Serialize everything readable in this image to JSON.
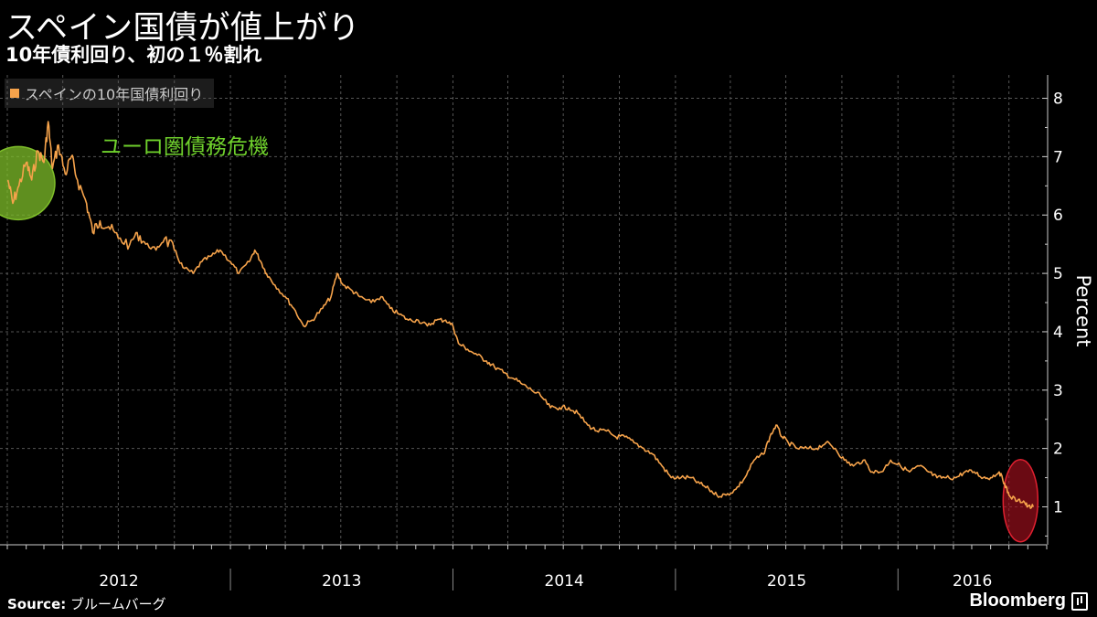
{
  "title": "スペイン国債が値上がり",
  "subtitle": "10年債利回り、初の１％割れ",
  "source_label": "Source:",
  "source_text": "ブルームバーグ",
  "brand": "Bloomberg",
  "brand_icon": "bloomberg-terminal-icon",
  "chart_data": {
    "type": "line",
    "series": [
      {
        "name": "スペインの10年国債利回り",
        "color": "#f6a34b",
        "points": [
          [
            "2012-01-02",
            6.6
          ],
          [
            "2012-01-10",
            6.2
          ],
          [
            "2012-01-20",
            6.5
          ],
          [
            "2012-02-01",
            6.9
          ],
          [
            "2012-02-10",
            6.6
          ],
          [
            "2012-02-20",
            7.1
          ],
          [
            "2012-03-01",
            6.9
          ],
          [
            "2012-03-08",
            7.6
          ],
          [
            "2012-03-15",
            6.8
          ],
          [
            "2012-03-25",
            7.2
          ],
          [
            "2012-04-05",
            6.7
          ],
          [
            "2012-04-15",
            7.0
          ],
          [
            "2012-04-25",
            6.6
          ],
          [
            "2012-05-10",
            6.2
          ],
          [
            "2012-05-20",
            5.7
          ],
          [
            "2012-06-01",
            5.9
          ],
          [
            "2012-06-15",
            5.8
          ],
          [
            "2012-07-01",
            5.6
          ],
          [
            "2012-07-20",
            5.5
          ],
          [
            "2012-08-01",
            5.7
          ],
          [
            "2012-08-15",
            5.5
          ],
          [
            "2012-09-01",
            5.4
          ],
          [
            "2012-09-15",
            5.6
          ],
          [
            "2012-10-01",
            5.4
          ],
          [
            "2012-10-15",
            5.1
          ],
          [
            "2012-11-01",
            5.0
          ],
          [
            "2012-11-15",
            5.2
          ],
          [
            "2012-12-01",
            5.3
          ],
          [
            "2012-12-15",
            5.4
          ],
          [
            "2013-01-01",
            5.2
          ],
          [
            "2013-01-15",
            5.0
          ],
          [
            "2013-02-01",
            5.2
          ],
          [
            "2013-02-10",
            5.4
          ],
          [
            "2013-02-20",
            5.2
          ],
          [
            "2013-03-01",
            5.0
          ],
          [
            "2013-03-15",
            4.8
          ],
          [
            "2013-04-01",
            4.6
          ],
          [
            "2013-04-15",
            4.4
          ],
          [
            "2013-05-01",
            4.1
          ],
          [
            "2013-05-15",
            4.2
          ],
          [
            "2013-06-01",
            4.4
          ],
          [
            "2013-06-15",
            4.6
          ],
          [
            "2013-06-25",
            5.0
          ],
          [
            "2013-07-05",
            4.8
          ],
          [
            "2013-07-20",
            4.7
          ],
          [
            "2013-08-01",
            4.6
          ],
          [
            "2013-08-20",
            4.5
          ],
          [
            "2013-09-05",
            4.6
          ],
          [
            "2013-09-20",
            4.4
          ],
          [
            "2013-10-05",
            4.3
          ],
          [
            "2013-10-20",
            4.2
          ],
          [
            "2013-11-05",
            4.2
          ],
          [
            "2013-11-20",
            4.1
          ],
          [
            "2013-12-05",
            4.2
          ],
          [
            "2013-12-20",
            4.2
          ],
          [
            "2014-01-01",
            4.1
          ],
          [
            "2014-01-10",
            3.8
          ],
          [
            "2014-01-25",
            3.7
          ],
          [
            "2014-02-10",
            3.6
          ],
          [
            "2014-02-25",
            3.5
          ],
          [
            "2014-03-10",
            3.4
          ],
          [
            "2014-03-25",
            3.3
          ],
          [
            "2014-04-10",
            3.2
          ],
          [
            "2014-04-25",
            3.1
          ],
          [
            "2014-05-10",
            3.0
          ],
          [
            "2014-05-25",
            2.9
          ],
          [
            "2014-06-10",
            2.7
          ],
          [
            "2014-06-25",
            2.7
          ],
          [
            "2014-07-10",
            2.7
          ],
          [
            "2014-07-25",
            2.6
          ],
          [
            "2014-08-10",
            2.4
          ],
          [
            "2014-08-25",
            2.3
          ],
          [
            "2014-09-10",
            2.3
          ],
          [
            "2014-09-25",
            2.2
          ],
          [
            "2014-10-10",
            2.2
          ],
          [
            "2014-10-25",
            2.1
          ],
          [
            "2014-11-10",
            2.0
          ],
          [
            "2014-11-25",
            1.9
          ],
          [
            "2014-12-10",
            1.7
          ],
          [
            "2014-12-25",
            1.5
          ],
          [
            "2015-01-10",
            1.5
          ],
          [
            "2015-01-25",
            1.5
          ],
          [
            "2015-02-10",
            1.4
          ],
          [
            "2015-02-25",
            1.3
          ],
          [
            "2015-03-10",
            1.2
          ],
          [
            "2015-03-25",
            1.2
          ],
          [
            "2015-04-10",
            1.3
          ],
          [
            "2015-04-25",
            1.5
          ],
          [
            "2015-05-10",
            1.8
          ],
          [
            "2015-05-25",
            1.9
          ],
          [
            "2015-06-05",
            2.2
          ],
          [
            "2015-06-15",
            2.4
          ],
          [
            "2015-06-25",
            2.2
          ],
          [
            "2015-07-05",
            2.1
          ],
          [
            "2015-07-20",
            2.0
          ],
          [
            "2015-08-05",
            2.0
          ],
          [
            "2015-08-20",
            2.0
          ],
          [
            "2015-09-05",
            2.1
          ],
          [
            "2015-09-20",
            2.0
          ],
          [
            "2015-10-05",
            1.8
          ],
          [
            "2015-10-20",
            1.7
          ],
          [
            "2015-11-05",
            1.8
          ],
          [
            "2015-11-20",
            1.6
          ],
          [
            "2015-12-05",
            1.6
          ],
          [
            "2015-12-20",
            1.8
          ],
          [
            "2016-01-05",
            1.7
          ],
          [
            "2016-01-20",
            1.6
          ],
          [
            "2016-02-05",
            1.7
          ],
          [
            "2016-02-20",
            1.6
          ],
          [
            "2016-03-05",
            1.5
          ],
          [
            "2016-03-20",
            1.5
          ],
          [
            "2016-04-05",
            1.5
          ],
          [
            "2016-04-20",
            1.6
          ],
          [
            "2016-05-05",
            1.6
          ],
          [
            "2016-05-20",
            1.5
          ],
          [
            "2016-06-01",
            1.5
          ],
          [
            "2016-06-15",
            1.6
          ],
          [
            "2016-06-24",
            1.4
          ],
          [
            "2016-07-01",
            1.2
          ],
          [
            "2016-07-15",
            1.1
          ],
          [
            "2016-07-25",
            1.1
          ],
          [
            "2016-08-01",
            1.0
          ],
          [
            "2016-08-10",
            1.0
          ]
        ]
      }
    ],
    "x_range": [
      "2011-12-20",
      "2016-09-01"
    ],
    "x_tick_labels": [
      "2012",
      "2013",
      "2014",
      "2015",
      "2016"
    ],
    "ylabel": "Percent",
    "ylim": [
      0.35,
      8.4
    ],
    "y_ticks": [
      1,
      2,
      3,
      4,
      5,
      6,
      7,
      8
    ],
    "grid": true,
    "legend_placement": "top-left",
    "annotations": [
      {
        "text": "ユーロ圏債務危機",
        "color": "#6fd12c",
        "marker": "circle",
        "marker_color": "#7fbf2a",
        "x": "2012-02-15",
        "y": 7.0
      },
      {
        "text": "",
        "marker": "ellipse",
        "marker_color": "#b01020",
        "x": "2016-07-20",
        "y": 1.2
      }
    ]
  }
}
